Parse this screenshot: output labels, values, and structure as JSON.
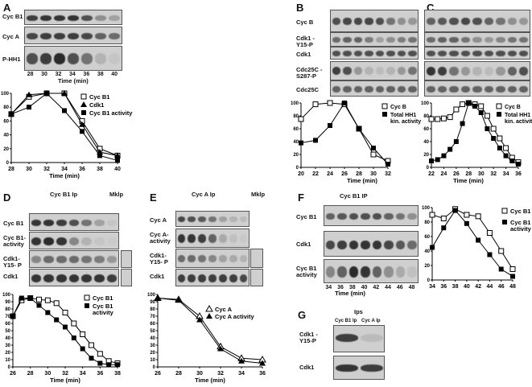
{
  "panels": {
    "A": {
      "letter": "A",
      "rows": [
        "Cyc B1",
        "Cyc A",
        "P-HH1"
      ],
      "lane_labels": [
        "28",
        "30",
        "32",
        "34",
        "36",
        "38",
        "40"
      ],
      "xlabel": "Time (min)"
    },
    "B": {
      "letter": "B",
      "rows": [
        "Cyc B",
        "Cdk1 -Y15-P",
        "Cdk1",
        "Cdc25C -S287-P",
        "Cdc25C"
      ]
    },
    "C": {
      "letter": "C"
    },
    "D": {
      "letter": "D",
      "ip_label": "Cyc B1 Ip",
      "mklp": "Mklp",
      "rows": [
        "Cyc B1",
        "Cyc B1- activity",
        "Cdk1- Y15- P",
        "Cdk1"
      ]
    },
    "E": {
      "letter": "E",
      "ip_label": "Cyc A Ip",
      "mklp": "Mklp",
      "rows": [
        "Cyc A",
        "Cyc A- activity",
        "Cdk1- Y15- P",
        "Cdk1"
      ]
    },
    "F": {
      "letter": "F",
      "ip_label": "Cyc B1 IP",
      "rows": [
        "Cyc B1",
        "Cdk1",
        "Cyc B1 activity"
      ],
      "lane_labels": [
        "34",
        "36",
        "38",
        "40",
        "42",
        "44",
        "46",
        "48"
      ]
    },
    "G": {
      "letter": "G",
      "title": "Ips",
      "cols": [
        "Cyc B1 Ip",
        "Cyc A Ip"
      ],
      "rows": [
        "Cdk1 -Y15-P",
        "Cdk1"
      ]
    }
  },
  "chart_data": [
    {
      "id": "A",
      "type": "line",
      "x": [
        28,
        30,
        32,
        34,
        36,
        38,
        40
      ],
      "xlabel": "Time (min)",
      "ylim": [
        0,
        100
      ],
      "yticks": [
        0,
        20,
        40,
        60,
        80,
        100
      ],
      "series": [
        {
          "name": "Cyc B1",
          "marker": "open-square",
          "values": [
            70,
            95,
            100,
            100,
            60,
            20,
            10
          ]
        },
        {
          "name": "Cdk1",
          "marker": "triangle",
          "values": [
            70,
            98,
            100,
            100,
            55,
            15,
            10
          ]
        },
        {
          "name": "Cyc B1 activity",
          "marker": "filled-square",
          "values": [
            70,
            80,
            100,
            75,
            45,
            10,
            3
          ]
        }
      ]
    },
    {
      "id": "B",
      "type": "line",
      "x": [
        20,
        22,
        24,
        26,
        28,
        30,
        32
      ],
      "xlabel": "Time (min)",
      "ylim": [
        0,
        100
      ],
      "yticks": [
        0,
        20,
        40,
        60,
        80,
        100
      ],
      "series": [
        {
          "name": "Cyc B",
          "marker": "open-square",
          "values": [
            75,
            98,
            100,
            98,
            60,
            20,
            10
          ]
        },
        {
          "name": "Total HH1 kin. activity",
          "marker": "filled-square",
          "values": [
            38,
            42,
            65,
            100,
            60,
            30,
            5
          ]
        }
      ]
    },
    {
      "id": "C",
      "type": "line",
      "x": [
        22,
        23,
        24,
        25,
        26,
        27,
        28,
        29,
        30,
        31,
        32,
        33,
        34,
        35,
        36
      ],
      "xlabel": "Time (min)",
      "ylim": [
        0,
        100
      ],
      "yticks": [
        0,
        20,
        40,
        60,
        80,
        100
      ],
      "series": [
        {
          "name": "Cyc B",
          "marker": "open-square",
          "values": [
            75,
            75,
            76,
            78,
            90,
            98,
            100,
            98,
            95,
            80,
            60,
            45,
            30,
            15,
            8
          ]
        },
        {
          "name": "Total HH1 kin. activity",
          "marker": "filled-square",
          "values": [
            10,
            12,
            18,
            28,
            40,
            68,
            100,
            95,
            85,
            60,
            45,
            30,
            18,
            10,
            5
          ]
        }
      ]
    },
    {
      "id": "D",
      "type": "line",
      "x": [
        26,
        27,
        28,
        29,
        30,
        31,
        32,
        33,
        34,
        35,
        36,
        37,
        38
      ],
      "xlabel": "Time (min)",
      "ylim": [
        0,
        100
      ],
      "yticks": [
        0,
        10,
        20,
        30,
        40,
        50,
        60,
        70,
        80,
        90,
        100
      ],
      "series": [
        {
          "name": "Cyc B1",
          "marker": "open-square",
          "values": [
            70,
            92,
            95,
            93,
            92,
            88,
            75,
            60,
            45,
            30,
            18,
            8,
            5
          ]
        },
        {
          "name": "Cyc B1 activity",
          "marker": "filled-square",
          "values": [
            70,
            95,
            95,
            85,
            75,
            65,
            55,
            40,
            25,
            12,
            5,
            3,
            3
          ]
        }
      ]
    },
    {
      "id": "E",
      "type": "line",
      "x": [
        26,
        28,
        30,
        32,
        34,
        36
      ],
      "xlabel": "Time (min)",
      "ylim": [
        0,
        100
      ],
      "yticks": [
        0,
        10,
        20,
        30,
        40,
        50,
        60,
        70,
        80,
        90,
        100
      ],
      "series": [
        {
          "name": "Cyc A",
          "marker": "open-triangle",
          "values": [
            95,
            93,
            70,
            28,
            12,
            10
          ]
        },
        {
          "name": "Cyc A activity",
          "marker": "filled-triangle",
          "values": [
            95,
            92,
            65,
            25,
            8,
            5
          ]
        }
      ]
    },
    {
      "id": "F",
      "type": "line",
      "x": [
        34,
        36,
        38,
        40,
        42,
        44,
        46,
        48
      ],
      "xlabel": "Time (min)",
      "ylim": [
        0,
        100
      ],
      "yticks": [
        0,
        20,
        40,
        60,
        80,
        100
      ],
      "series": [
        {
          "name": "Cyc B1",
          "marker": "open-square",
          "values": [
            90,
            85,
            98,
            90,
            88,
            65,
            40,
            15
          ]
        },
        {
          "name": "Cyc B1 activity",
          "marker": "filled-square",
          "values": [
            45,
            72,
            96,
            78,
            55,
            35,
            15,
            5
          ]
        }
      ]
    }
  ]
}
